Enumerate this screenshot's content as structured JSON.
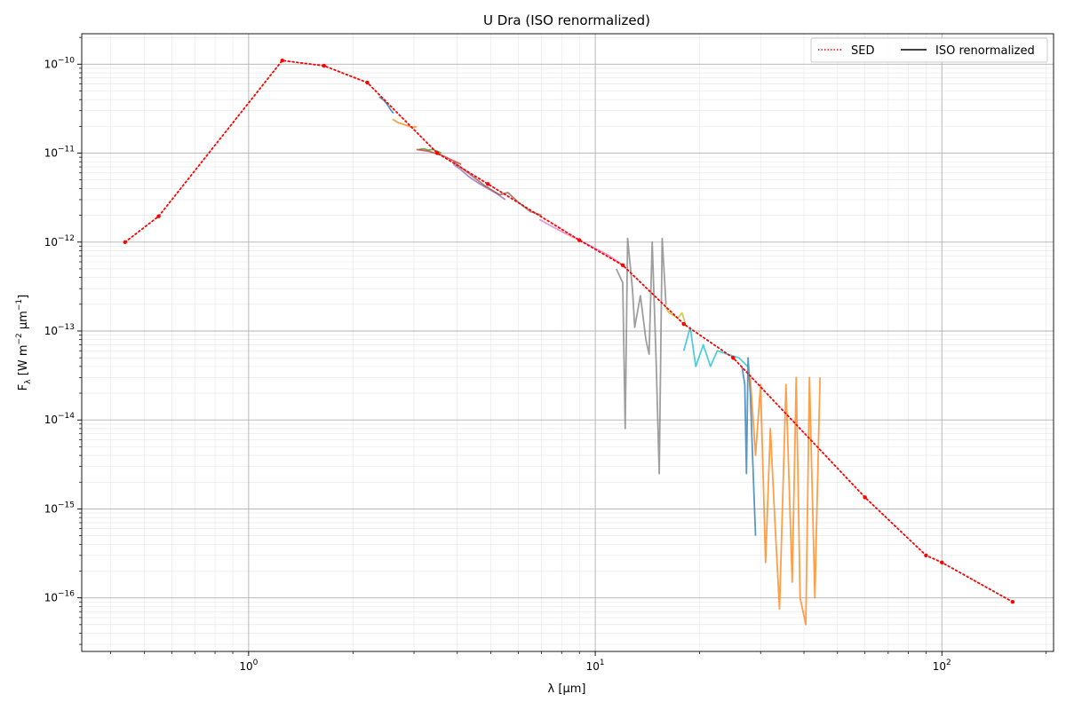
{
  "chart_data": {
    "type": "line",
    "title": "U Dra (ISO renormalized)",
    "xlabel": "λ [μm]",
    "ylabel": "F_λ [W m^-2 μm^-1]",
    "xscale": "log",
    "yscale": "log",
    "xlim": [
      0.33,
      210
    ],
    "ylim": [
      2.5e-17,
      2.2e-10
    ],
    "grid": true,
    "legend_position": "top-right",
    "legend": [
      {
        "label": "SED",
        "style": "dotted",
        "color": "#ff0000"
      },
      {
        "label": "ISO renormalized",
        "style": "solid",
        "color": "#000000"
      }
    ],
    "x_tick_labels": [
      {
        "value": 1,
        "text": "10^0"
      },
      {
        "value": 10,
        "text": "10^1"
      },
      {
        "value": 100,
        "text": "10^2"
      }
    ],
    "y_tick_labels": [
      {
        "value": 1e-16,
        "text": "10^-16"
      },
      {
        "value": 1e-15,
        "text": "10^-15"
      },
      {
        "value": 1e-14,
        "text": "10^-14"
      },
      {
        "value": 1e-13,
        "text": "10^-13"
      },
      {
        "value": 1e-12,
        "text": "10^-12"
      },
      {
        "value": 1e-11,
        "text": "10^-11"
      },
      {
        "value": 1e-10,
        "text": "10^-10"
      }
    ],
    "sed": {
      "name": "SED",
      "color": "#ff0000",
      "x": [
        0.44,
        0.55,
        1.25,
        1.65,
        2.2,
        3.5,
        4.9,
        9.0,
        12.0,
        18.0,
        25.0,
        60.0,
        90.0,
        100.0,
        160.0
      ],
      "y": [
        1e-12,
        1.95e-12,
        1.1e-10,
        9.6e-11,
        6.2e-11,
        1e-11,
        4.5e-12,
        1.05e-12,
        5.5e-13,
        1.2e-13,
        5e-14,
        1.35e-15,
        3e-16,
        2.5e-16,
        9e-17
      ]
    },
    "iso_segments": [
      {
        "color": "#1f77b4",
        "x": [
          2.38,
          2.42,
          2.46,
          2.5,
          2.54,
          2.58,
          2.62
        ],
        "y": [
          4.3e-11,
          4.1e-11,
          3.9e-11,
          3.6e-11,
          3.3e-11,
          3e-11,
          2.8e-11
        ]
      },
      {
        "color": "#ff7f0e",
        "x": [
          2.6,
          2.7,
          2.8,
          2.9,
          3.0,
          3.05
        ],
        "y": [
          2.4e-11,
          2.2e-11,
          2.1e-11,
          2e-11,
          1.95e-11,
          2e-11
        ]
      },
      {
        "color": "#2ca02c",
        "x": [
          3.1,
          3.2,
          3.3,
          3.4,
          3.5,
          3.6
        ],
        "y": [
          1.1e-11,
          1.12e-11,
          1.08e-11,
          1.1e-11,
          1.05e-11,
          1e-11
        ]
      },
      {
        "color": "#d62728",
        "x": [
          3.05,
          3.3,
          3.6,
          3.9,
          4.1
        ],
        "y": [
          1.1e-11,
          1.05e-11,
          9.5e-12,
          8.2e-12,
          7.5e-12
        ]
      },
      {
        "color": "#9467bd",
        "x": [
          3.9,
          4.1,
          4.3,
          4.6,
          4.9,
          5.2,
          5.5
        ],
        "y": [
          7.5e-12,
          6.5e-12,
          5.5e-12,
          4.6e-12,
          4e-12,
          3.5e-12,
          3e-12
        ]
      },
      {
        "color": "#8c564b",
        "x": [
          3.9,
          4.3,
          4.8,
          5.3,
          5.6,
          6.0,
          6.5,
          7.0
        ],
        "y": [
          8e-12,
          6e-12,
          4.3e-12,
          3.4e-12,
          3.6e-12,
          2.8e-12,
          2.2e-12,
          2e-12
        ]
      },
      {
        "color": "#e377c2",
        "x": [
          6.9,
          7.5,
          8.2,
          9.0,
          10.0,
          11.0,
          12.0
        ],
        "y": [
          1.8e-12,
          1.5e-12,
          1.25e-12,
          1.05e-12,
          8.5e-13,
          7e-13,
          5.5e-13
        ]
      },
      {
        "color": "#7f7f7f",
        "x": [
          11.5,
          12.0,
          12.2,
          12.4,
          12.8,
          13.0,
          13.5,
          14.0,
          14.3,
          14.6,
          15.0,
          15.3,
          15.6,
          16.0
        ],
        "y": [
          5e-13,
          3.5e-13,
          8e-15,
          1.1e-12,
          3e-13,
          1.1e-13,
          2.5e-13,
          8e-14,
          5.5e-14,
          1e-12,
          4e-14,
          2.5e-15,
          1.1e-12,
          2e-13
        ]
      },
      {
        "color": "#bcbd22",
        "x": [
          15.8,
          16.3,
          16.8,
          17.3,
          17.8,
          18.2
        ],
        "y": [
          2e-13,
          1.6e-13,
          1.5e-13,
          1.4e-13,
          1.6e-13,
          1.2e-13
        ]
      },
      {
        "color": "#17becf",
        "x": [
          18.0,
          18.8,
          19.5,
          20.5,
          21.5,
          22.5,
          24.0,
          26.0,
          27.5
        ],
        "y": [
          6e-14,
          1.1e-13,
          4e-14,
          7e-14,
          4e-14,
          6e-14,
          5.5e-14,
          5e-14,
          4e-14
        ]
      },
      {
        "color": "#1f77b4",
        "x": [
          26.5,
          27.0,
          27.3,
          27.6,
          28.0,
          28.5,
          29.0
        ],
        "y": [
          4e-14,
          2.5e-14,
          2.5e-15,
          5e-14,
          2e-14,
          3e-15,
          5e-16
        ]
      },
      {
        "color": "#ff7f0e",
        "x": [
          28.0,
          29.0,
          30.0,
          31.0,
          32.0,
          33.0,
          34.0,
          35.5,
          37.0,
          38.0,
          39.0,
          40.5,
          41.5,
          43.0,
          44.5
        ],
        "y": [
          3e-14,
          4e-15,
          2.5e-14,
          2.5e-16,
          8e-15,
          7e-16,
          7.5e-17,
          2.5e-14,
          1.5e-16,
          3e-14,
          1e-16,
          5e-17,
          3e-14,
          1e-16,
          3e-14
        ]
      }
    ]
  }
}
